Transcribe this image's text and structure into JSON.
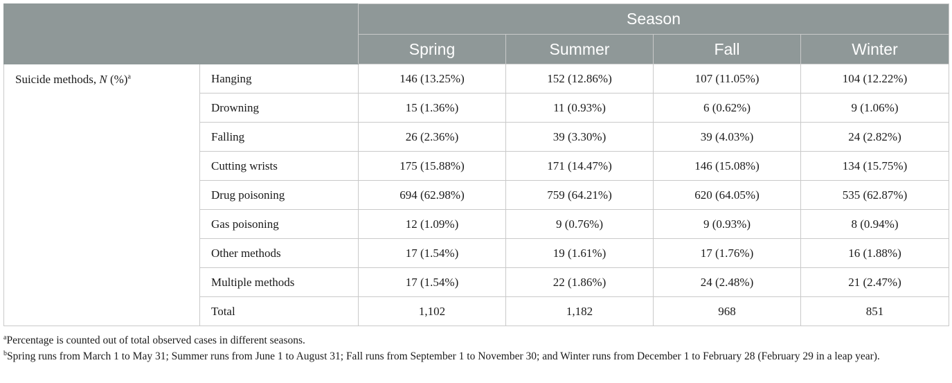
{
  "header": {
    "group": "Season",
    "seasons": [
      "Spring",
      "Summer",
      "Fall",
      "Winter"
    ]
  },
  "row_group": {
    "label": "Suicide methods, ",
    "label_n": "N",
    "label_pct": " (%)",
    "label_sup": "a"
  },
  "rows": [
    {
      "method": "Hanging",
      "values": [
        "146 (13.25%)",
        "152 (12.86%)",
        "107 (11.05%)",
        "104 (12.22%)"
      ]
    },
    {
      "method": "Drowning",
      "values": [
        "15 (1.36%)",
        "11 (0.93%)",
        "6 (0.62%)",
        "9 (1.06%)"
      ]
    },
    {
      "method": "Falling",
      "values": [
        "26 (2.36%)",
        "39 (3.30%)",
        "39 (4.03%)",
        "24 (2.82%)"
      ]
    },
    {
      "method": "Cutting wrists",
      "values": [
        "175 (15.88%)",
        "171 (14.47%)",
        "146 (15.08%)",
        "134 (15.75%)"
      ]
    },
    {
      "method": "Drug poisoning",
      "values": [
        "694 (62.98%)",
        "759 (64.21%)",
        "620 (64.05%)",
        "535 (62.87%)"
      ]
    },
    {
      "method": "Gas poisoning",
      "values": [
        "12 (1.09%)",
        "9 (0.76%)",
        "9 (0.93%)",
        "8 (0.94%)"
      ]
    },
    {
      "method": "Other methods",
      "values": [
        "17 (1.54%)",
        "19 (1.61%)",
        "17 (1.76%)",
        "16 (1.88%)"
      ]
    },
    {
      "method": "Multiple methods",
      "values": [
        "17 (1.54%)",
        "22 (1.86%)",
        "24 (2.48%)",
        "21 (2.47%)"
      ]
    },
    {
      "method": "Total",
      "values": [
        "1,102",
        "1,182",
        "968",
        "851"
      ]
    }
  ],
  "footnotes": {
    "a_sup": "a",
    "a_text": "Percentage is counted out of total observed cases in different seasons.",
    "b_sup": "b",
    "b_text": "Spring runs from March 1 to May 31; Summer runs from June 1 to August 31; Fall runs from September 1 to November 30; and Winter runs from December 1 to February 28 (February 29 in a leap year)."
  }
}
